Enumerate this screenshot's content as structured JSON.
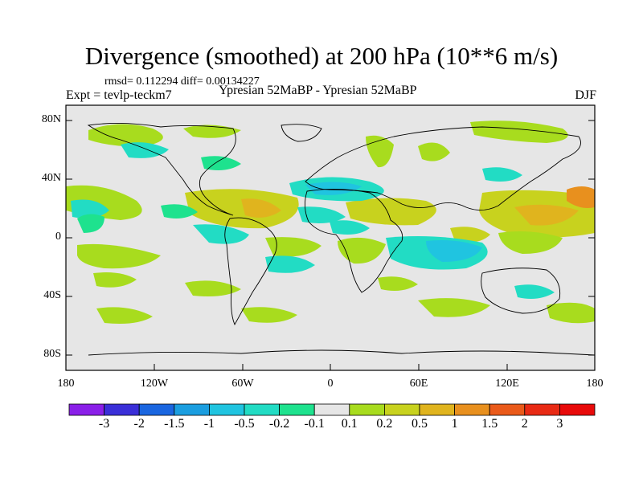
{
  "title": "Divergence (smoothed) at 200 hPa (10**6 m/s)",
  "stats": "rmsd= 0.112294 diff= 0.00134227",
  "experiment": "Expt = tevlp-teckm7",
  "period": "Ypresian  52MaBP - Ypresian  52MaBP",
  "season": "DJF",
  "axes": {
    "y_ticks": [
      "80N",
      "40N",
      "0",
      "40S",
      "80S"
    ],
    "x_ticks": [
      "180",
      "120W",
      "60W",
      "0",
      "60E",
      "120E",
      "180"
    ]
  },
  "colorbar": {
    "labels": [
      "-3",
      "-2",
      "-1.5",
      "-1",
      "-0.5",
      "-0.2",
      "-0.1",
      "0.1",
      "0.2",
      "0.5",
      "1",
      "1.5",
      "2",
      "3"
    ],
    "colors": [
      "#8a1fe8",
      "#3a2fd8",
      "#1a66e0",
      "#1b9ee0",
      "#20c4e0",
      "#22dcc4",
      "#1ee28e",
      "#e6e6e6",
      "#a8dc1e",
      "#c8d21e",
      "#e0b41e",
      "#e8901e",
      "#ea5a1a",
      "#e82a14",
      "#e80a0a"
    ]
  },
  "background_color": "#e6e6e6"
}
